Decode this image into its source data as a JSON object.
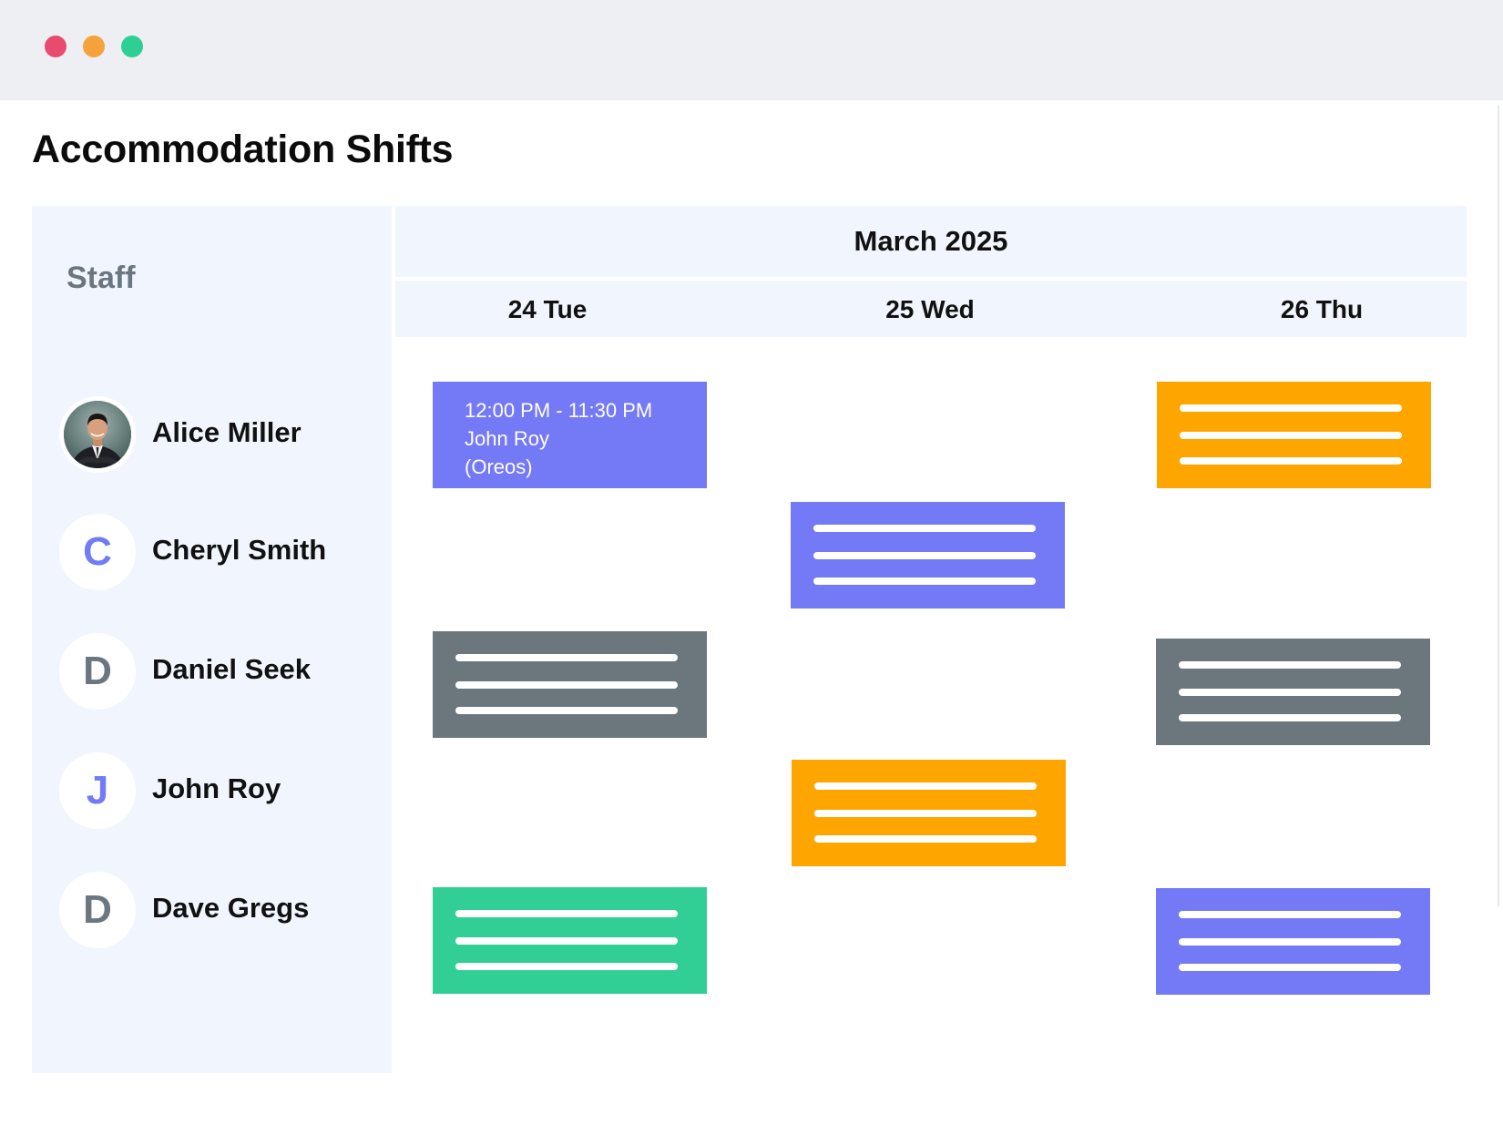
{
  "window": {
    "controls": [
      "close",
      "minimize",
      "maximize"
    ],
    "colors": {
      "close": "#e74c6e",
      "minimize": "#f4a23c",
      "maximize": "#2ecf94"
    }
  },
  "page": {
    "title": "Accommodation Shifts"
  },
  "staff": {
    "heading": "Staff",
    "members": [
      {
        "name": "Alice Miller",
        "avatar": "photo"
      },
      {
        "name": "Cheryl Smith",
        "initial": "C",
        "initial_color": "#727bf4"
      },
      {
        "name": "Daniel Seek",
        "initial": "D",
        "initial_color": "#6b7680"
      },
      {
        "name": "John Roy",
        "initial": "J",
        "initial_color": "#727bf4"
      },
      {
        "name": "Dave Gregs",
        "initial": "D",
        "initial_color": "#6b7680"
      }
    ]
  },
  "calendar": {
    "month": "March 2025",
    "days": [
      "24 Tue",
      "25 Wed",
      "26 Thu"
    ],
    "shifts": [
      {
        "staff": "Alice Miller",
        "day": "24 Tue",
        "color": "#7479f5",
        "time": "12:00 PM - 11:30 PM",
        "person": "John Roy",
        "note": "(Oreos)"
      },
      {
        "staff": "Alice Miller",
        "day": "26 Thu",
        "color": "#fea500"
      },
      {
        "staff": "Cheryl Smith",
        "day": "25 Wed",
        "color": "#7479f5"
      },
      {
        "staff": "Daniel Seek",
        "day": "24 Tue",
        "color": "#6b767d"
      },
      {
        "staff": "Daniel Seek",
        "day": "26 Thu",
        "color": "#6b767d"
      },
      {
        "staff": "John Roy",
        "day": "25 Wed",
        "color": "#fea500"
      },
      {
        "staff": "Dave Gregs",
        "day": "24 Tue",
        "color": "#31cf96"
      },
      {
        "staff": "Dave Gregs",
        "day": "26 Thu",
        "color": "#7479f5"
      }
    ]
  },
  "icons": {
    "placeholder_lines": "text-placeholder-lines",
    "avatar_photo": "person-in-suit-avatar"
  }
}
